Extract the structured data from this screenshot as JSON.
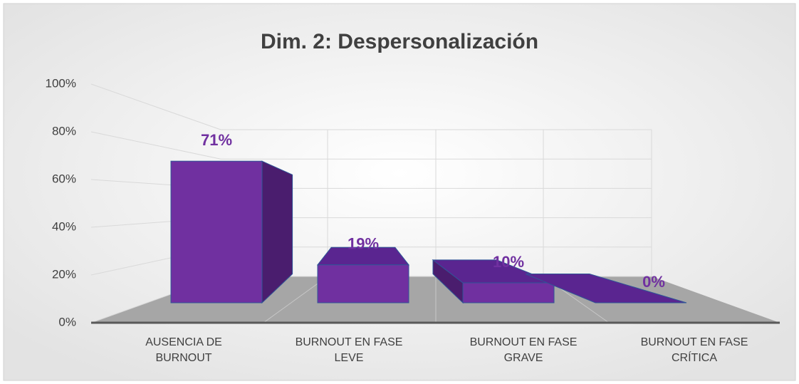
{
  "chart_data": {
    "type": "bar3d",
    "title": "Dim. 2: Despersonalización",
    "categories": [
      "AUSENCIA DE BURNOUT",
      "BURNOUT EN FASE LEVE",
      "BURNOUT EN FASE GRAVE",
      "BURNOUT EN FASE CRÍTICA"
    ],
    "values": [
      71,
      19,
      10,
      0
    ],
    "value_labels": [
      "71%",
      "19%",
      "10%",
      "0%"
    ],
    "color": "#7030a0",
    "ylim": [
      0,
      100
    ],
    "yticks": [
      {
        "value": 0,
        "label": "0%"
      },
      {
        "value": 20,
        "label": "20%"
      },
      {
        "value": 40,
        "label": "40%"
      },
      {
        "value": 60,
        "label": "60%"
      },
      {
        "value": 80,
        "label": "80%"
      },
      {
        "value": 100,
        "label": "100%"
      }
    ],
    "grid": true
  }
}
